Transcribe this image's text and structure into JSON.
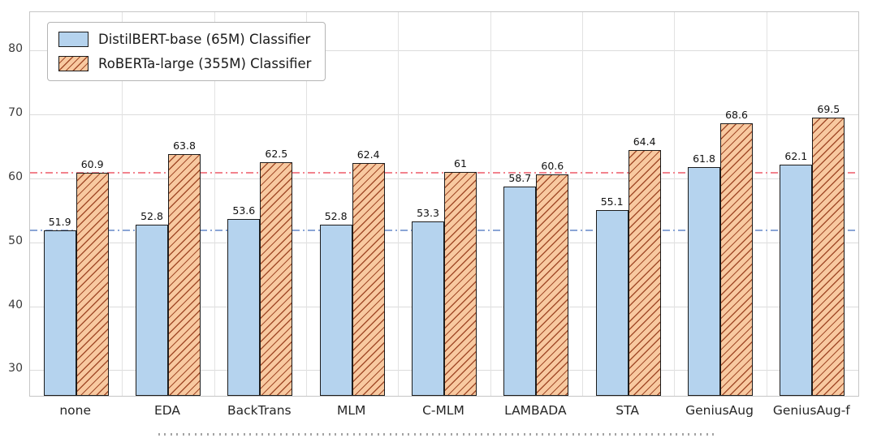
{
  "chart_data": {
    "type": "bar",
    "title": "",
    "categories": [
      "none",
      "EDA",
      "BackTrans",
      "MLM",
      "C-MLM",
      "LAMBADA",
      "STA",
      "GeniusAug",
      "GeniusAug-f"
    ],
    "series": [
      {
        "name": "DistilBERT-base (65M) Classifier",
        "color": "#b5d3ee",
        "hatch": false,
        "values": [
          51.9,
          52.8,
          53.6,
          52.8,
          53.3,
          58.7,
          55.1,
          61.8,
          62.1
        ],
        "value_labels": [
          "51.9",
          "52.8",
          "53.6",
          "52.8",
          "53.3",
          "58.7",
          "55.1",
          "61.8",
          "62.1"
        ]
      },
      {
        "name": "RoBERTa-large (355M) Classifier",
        "color": "#f8c9a0",
        "hatch": true,
        "hatch_color": "#a34d2b",
        "values": [
          60.9,
          63.8,
          62.5,
          62.4,
          61,
          60.6,
          64.4,
          68.6,
          69.5
        ],
        "value_labels": [
          "60.9",
          "63.8",
          "62.5",
          "62.4",
          "61",
          "60.6",
          "64.4",
          "68.6",
          "69.5"
        ]
      }
    ],
    "yticks": [
      30,
      40,
      50,
      60,
      70,
      80
    ],
    "ylim": [
      26,
      86
    ],
    "grid": true,
    "legend_position": "upper left",
    "reference_lines": [
      {
        "value": 60.9,
        "color": "#f2838d",
        "style": "dashdot"
      },
      {
        "value": 51.9,
        "color": "#8aa5d6",
        "style": "dashdot"
      }
    ]
  }
}
